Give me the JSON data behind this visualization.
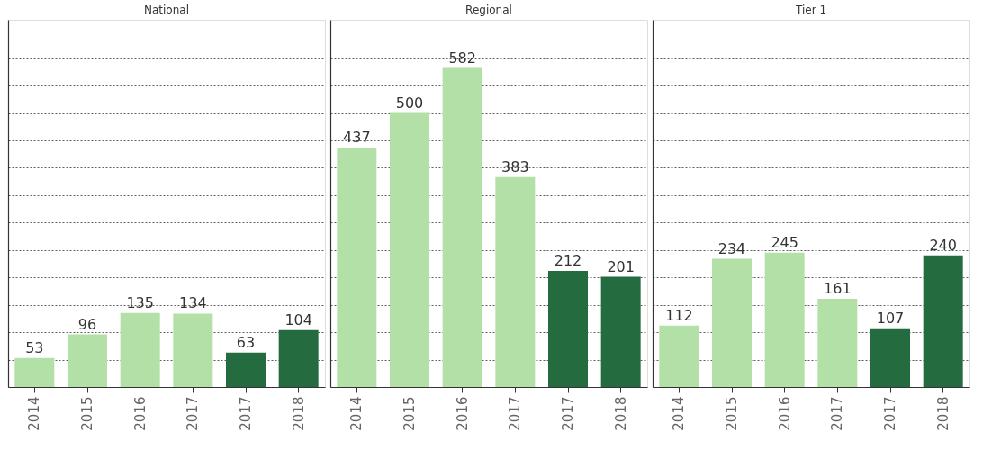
{
  "chart_data": [
    {
      "type": "bar",
      "title": "National",
      "categories": [
        "2014",
        "2015",
        "2016",
        "2017",
        "2017",
        "2018"
      ],
      "values": [
        53,
        96,
        135,
        134,
        63,
        104
      ],
      "colors": [
        "#b3e0a6",
        "#b3e0a6",
        "#b3e0a6",
        "#b3e0a6",
        "#246b3f",
        "#246b3f"
      ],
      "data_labels": true,
      "ylim": [
        0,
        670
      ],
      "grid": "y",
      "tick_labels": "x"
    },
    {
      "type": "bar",
      "title": "Regional",
      "categories": [
        "2014",
        "2015",
        "2016",
        "2017",
        "2017",
        "2018"
      ],
      "values": [
        437,
        500,
        582,
        383,
        212,
        201
      ],
      "colors": [
        "#b3e0a6",
        "#b3e0a6",
        "#b3e0a6",
        "#b3e0a6",
        "#246b3f",
        "#246b3f"
      ],
      "data_labels": true,
      "ylim": [
        0,
        670
      ],
      "grid": "y",
      "tick_labels": "x"
    },
    {
      "type": "bar",
      "title": "Tier 1",
      "categories": [
        "2014",
        "2015",
        "2016",
        "2017",
        "2017",
        "2018"
      ],
      "values": [
        112,
        234,
        245,
        161,
        107,
        240
      ],
      "colors": [
        "#b3e0a6",
        "#b3e0a6",
        "#b3e0a6",
        "#b3e0a6",
        "#246b3f",
        "#246b3f"
      ],
      "data_labels": true,
      "ylim": [
        0,
        670
      ],
      "grid": "y",
      "tick_labels": "x"
    }
  ]
}
